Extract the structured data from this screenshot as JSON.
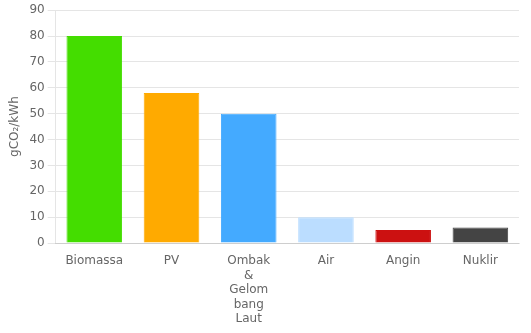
{
  "chart_data": {
    "type": "bar",
    "categories": [
      "Biomassa",
      "PV",
      "Ombak\n&\nGelom\nbang\nLaut",
      "Air",
      "Angin",
      "Nuklir"
    ],
    "values": [
      80,
      58,
      50,
      10,
      5,
      6
    ],
    "colors": [
      "#44dd00",
      "#ffaa00",
      "#44aaff",
      "#bbddff",
      "#cc1111",
      "#444444"
    ],
    "ylabel": "gCO₂/kWh",
    "ylim": [
      0,
      90
    ],
    "yticks": [
      0,
      10,
      20,
      30,
      40,
      50,
      60,
      70,
      80,
      90
    ],
    "grid": true
  }
}
